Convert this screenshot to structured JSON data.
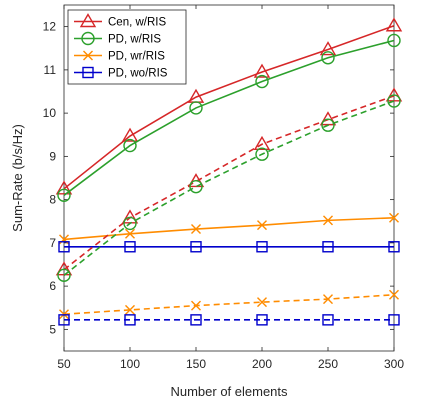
{
  "chart_data": {
    "type": "line",
    "xlabel": "Number of elements",
    "ylabel": "Sum-Rate (b/s/Hz)",
    "xlim": [
      50,
      300
    ],
    "ylim": [
      4.5,
      12.5
    ],
    "x_ticks": [
      "50",
      "100",
      "150",
      "200",
      "250",
      "300"
    ],
    "y_ticks": [
      "5",
      "6",
      "7",
      "8",
      "9",
      "10",
      "11",
      "12"
    ],
    "grid": false,
    "legend_position": "top-left",
    "x": [
      50,
      100,
      150,
      200,
      250,
      300
    ],
    "series": [
      {
        "name": "Cen, w/RIS",
        "color": "#d62728",
        "marker": "triangle",
        "style": "solid",
        "values": [
          8.25,
          9.47,
          10.37,
          10.95,
          11.47,
          12.02
        ]
      },
      {
        "name": "PD, w/RIS",
        "color": "#2ca02c",
        "marker": "circle",
        "style": "solid",
        "values": [
          8.1,
          9.25,
          10.12,
          10.73,
          11.28,
          11.68
        ]
      },
      {
        "name": "PD, wr/RIS",
        "color": "#ff8c00",
        "marker": "x",
        "style": "solid",
        "values": [
          7.08,
          7.21,
          7.32,
          7.41,
          7.52,
          7.58
        ]
      },
      {
        "name": "PD, wo/RIS",
        "color": "#0000cc",
        "marker": "square",
        "style": "solid",
        "values": [
          6.91,
          6.91,
          6.91,
          6.91,
          6.91,
          6.91
        ]
      },
      {
        "color": "#d62728",
        "marker": "triangle",
        "style": "dashed",
        "values": [
          6.38,
          7.58,
          8.42,
          9.28,
          9.85,
          10.4
        ]
      },
      {
        "color": "#2ca02c",
        "marker": "circle",
        "style": "dashed",
        "values": [
          6.25,
          7.45,
          8.3,
          9.05,
          9.72,
          10.28
        ]
      },
      {
        "color": "#ff8c00",
        "marker": "x",
        "style": "dashed",
        "values": [
          5.35,
          5.45,
          5.55,
          5.63,
          5.7,
          5.8
        ]
      },
      {
        "color": "#0000cc",
        "marker": "square",
        "style": "dashed",
        "values": [
          5.22,
          5.22,
          5.22,
          5.22,
          5.22,
          5.22
        ]
      }
    ]
  }
}
